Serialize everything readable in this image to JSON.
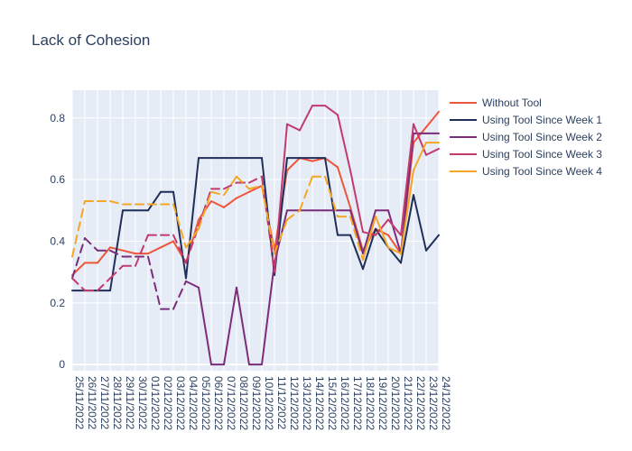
{
  "chart_data": {
    "type": "line",
    "title": "Lack of Cohesion",
    "xlabel": "",
    "ylabel": "",
    "ylim": [
      -0.02,
      0.89
    ],
    "yticks": [
      0,
      0.2,
      0.4,
      0.6,
      0.8
    ],
    "ytick_labels": [
      "0",
      "0.2",
      "0.4",
      "0.6",
      "0.8"
    ],
    "grid": true,
    "legend_position": "top-right",
    "background": "#e5ecf6",
    "categories": [
      "25/11/2022",
      "26/11/2022",
      "27/11/2022",
      "28/11/2022",
      "29/11/2022",
      "30/11/2022",
      "01/12/2022",
      "02/12/2022",
      "03/12/2022",
      "04/12/2022",
      "05/12/2022",
      "06/12/2022",
      "07/12/2022",
      "08/12/2022",
      "09/12/2022",
      "10/12/2022",
      "11/12/2022",
      "12/12/2022",
      "13/12/2022",
      "14/12/2022",
      "15/12/2022",
      "16/12/2022",
      "17/12/2022",
      "18/12/2022",
      "19/12/2022",
      "20/12/2022",
      "21/12/2022",
      "22/12/2022",
      "23/12/2022",
      "24/12/2022"
    ],
    "series": [
      {
        "name": "Without Tool",
        "color": "#ef553b",
        "dash": "solid",
        "values": [
          0.29,
          0.33,
          0.33,
          0.38,
          0.37,
          0.36,
          0.36,
          0.38,
          0.4,
          0.33,
          0.47,
          0.53,
          0.51,
          0.54,
          0.56,
          0.58,
          0.37,
          0.63,
          0.67,
          0.66,
          0.67,
          0.64,
          0.51,
          0.37,
          0.44,
          0.42,
          0.36,
          0.72,
          0.77,
          0.82
        ]
      },
      {
        "name": "Using Tool Since Week 1",
        "color": "#1f2f5a",
        "dash": "solid",
        "values": [
          0.24,
          0.24,
          0.24,
          0.24,
          0.5,
          0.5,
          0.5,
          0.56,
          0.56,
          0.28,
          0.67,
          0.67,
          0.67,
          0.67,
          0.67,
          0.67,
          0.29,
          0.67,
          0.67,
          0.67,
          0.67,
          0.42,
          0.42,
          0.31,
          0.44,
          0.38,
          0.33,
          0.55,
          0.37,
          0.42
        ]
      },
      {
        "name": "Using Tool Since Week 2",
        "color": "#7b2d7a",
        "dash": "mixed",
        "dashed_from": 0,
        "dashed_to": 9,
        "values": [
          0.28,
          0.41,
          0.37,
          0.37,
          0.35,
          0.35,
          0.35,
          0.18,
          0.18,
          0.27,
          0.25,
          0,
          0,
          0.25,
          0,
          0,
          0.33,
          0.5,
          0.5,
          0.5,
          0.5,
          0.5,
          0.5,
          0.36,
          0.5,
          0.5,
          0.36,
          0.75,
          0.75,
          0.75
        ]
      },
      {
        "name": "Using Tool Since Week 3",
        "color": "#c23a6e",
        "dash": "mixed",
        "dashed_from": 0,
        "dashed_to": 16,
        "values": [
          0.28,
          0.24,
          0.24,
          0.28,
          0.32,
          0.32,
          0.42,
          0.42,
          0.42,
          0.33,
          0.45,
          0.57,
          0.57,
          0.59,
          0.59,
          0.61,
          0.3,
          0.78,
          0.76,
          0.84,
          0.84,
          0.81,
          0.63,
          0.43,
          0.42,
          0.47,
          0.42,
          0.78,
          0.68,
          0.7
        ]
      },
      {
        "name": "Using Tool Since Week 4",
        "color": "#f5a623",
        "dash": "mixed",
        "dashed_from": 0,
        "dashed_to": 23,
        "values": [
          0.35,
          0.53,
          0.53,
          0.53,
          0.52,
          0.52,
          0.52,
          0.52,
          0.52,
          0.38,
          0.44,
          0.56,
          0.55,
          0.61,
          0.57,
          0.58,
          0.36,
          0.47,
          0.5,
          0.61,
          0.61,
          0.48,
          0.48,
          0.34,
          0.48,
          0.38,
          0.36,
          0.63,
          0.72,
          0.72
        ]
      }
    ]
  }
}
